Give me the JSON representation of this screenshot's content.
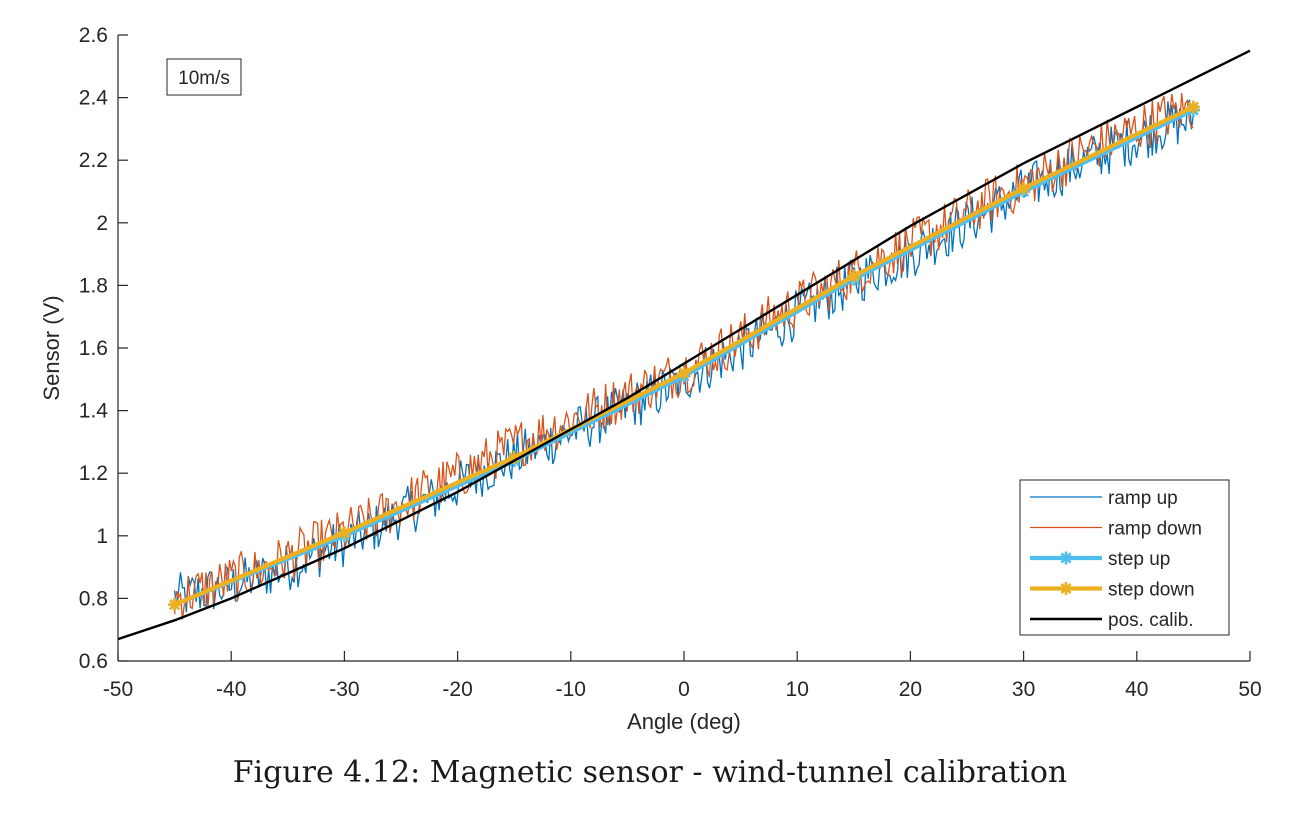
{
  "caption": "Figure 4.12: Magnetic sensor - wind-tunnel calibration",
  "chart_data": {
    "type": "line",
    "xlabel": "Angle (deg)",
    "ylabel": "Sensor (V)",
    "xlim": [
      -50,
      50
    ],
    "ylim": [
      0.6,
      2.6
    ],
    "xticks": [
      -50,
      -40,
      -30,
      -20,
      -10,
      0,
      10,
      20,
      30,
      40,
      50
    ],
    "yticks": [
      0.6,
      0.8,
      1,
      1.2,
      1.4,
      1.6,
      1.8,
      2,
      2.2,
      2.4,
      2.6
    ],
    "xtick_labels": [
      "-50",
      "-40",
      "-30",
      "-20",
      "-10",
      "0",
      "10",
      "20",
      "30",
      "40",
      "50"
    ],
    "ytick_labels": [
      "0.6",
      "0.8",
      "1",
      "1.2",
      "1.4",
      "1.6",
      "1.8",
      "2",
      "2.2",
      "2.4",
      "2.6"
    ],
    "annotation": "10m/s",
    "grid": false,
    "legend_position": "bottom-right",
    "series": [
      {
        "name": "ramp up",
        "color": "#0072BD",
        "style": "noisy-thin-line",
        "x": [
          -45,
          -42.5,
          -40,
          -37.5,
          -35,
          -32.5,
          -30,
          -27.5,
          -25,
          -22.5,
          -20,
          -17.5,
          -15,
          -12.5,
          -10,
          -7.5,
          -5,
          -2.5,
          0,
          2.5,
          5,
          7.5,
          10,
          12.5,
          15,
          17.5,
          20,
          22.5,
          25,
          27.5,
          30,
          32.5,
          35,
          37.5,
          40,
          42.5,
          45
        ],
        "y": [
          0.8,
          0.82,
          0.84,
          0.87,
          0.9,
          0.94,
          0.98,
          1.02,
          1.07,
          1.11,
          1.16,
          1.21,
          1.25,
          1.29,
          1.33,
          1.37,
          1.41,
          1.45,
          1.5,
          1.55,
          1.6,
          1.65,
          1.71,
          1.76,
          1.81,
          1.86,
          1.9,
          1.95,
          2.0,
          2.05,
          2.1,
          2.15,
          2.19,
          2.23,
          2.27,
          2.31,
          2.33
        ]
      },
      {
        "name": "ramp down",
        "color": "#D95319",
        "style": "noisy-thin-line",
        "x": [
          -45,
          -42.5,
          -40,
          -37.5,
          -35,
          -32.5,
          -30,
          -27.5,
          -25,
          -22.5,
          -20,
          -17.5,
          -15,
          -12.5,
          -10,
          -7.5,
          -5,
          -2.5,
          0,
          2.5,
          5,
          7.5,
          10,
          12.5,
          15,
          17.5,
          20,
          22.5,
          25,
          27.5,
          30,
          32.5,
          35,
          37.5,
          40,
          42.5,
          45
        ],
        "y": [
          0.8,
          0.83,
          0.86,
          0.89,
          0.93,
          0.97,
          1.01,
          1.05,
          1.1,
          1.15,
          1.19,
          1.24,
          1.29,
          1.33,
          1.37,
          1.41,
          1.45,
          1.49,
          1.53,
          1.58,
          1.63,
          1.69,
          1.74,
          1.79,
          1.84,
          1.89,
          1.93,
          1.98,
          2.03,
          2.08,
          2.12,
          2.17,
          2.22,
          2.26,
          2.3,
          2.34,
          2.37
        ]
      },
      {
        "name": "step up",
        "color": "#4DBEEE",
        "style": "thick-line-asterisk",
        "x": [
          -45,
          -30,
          -15,
          0,
          15,
          30,
          45
        ],
        "y": [
          0.78,
          1.0,
          1.24,
          1.51,
          1.82,
          2.1,
          2.36
        ]
      },
      {
        "name": "step down",
        "color": "#EDB120",
        "style": "thick-line-asterisk",
        "x": [
          -45,
          -30,
          -15,
          0,
          15,
          30,
          45
        ],
        "y": [
          0.78,
          1.01,
          1.25,
          1.52,
          1.83,
          2.11,
          2.37
        ]
      },
      {
        "name": "pos. calib.",
        "color": "#000000",
        "style": "line",
        "x": [
          -50,
          -45,
          -40,
          -35,
          -30,
          -25,
          -20,
          -15,
          -10,
          -5,
          0,
          5,
          10,
          15,
          20,
          25,
          30,
          35,
          40,
          45,
          50
        ],
        "y": [
          0.67,
          0.73,
          0.8,
          0.88,
          0.96,
          1.05,
          1.14,
          1.24,
          1.34,
          1.44,
          1.55,
          1.66,
          1.77,
          1.88,
          1.99,
          2.09,
          2.19,
          2.28,
          2.37,
          2.46,
          2.55
        ]
      }
    ]
  }
}
